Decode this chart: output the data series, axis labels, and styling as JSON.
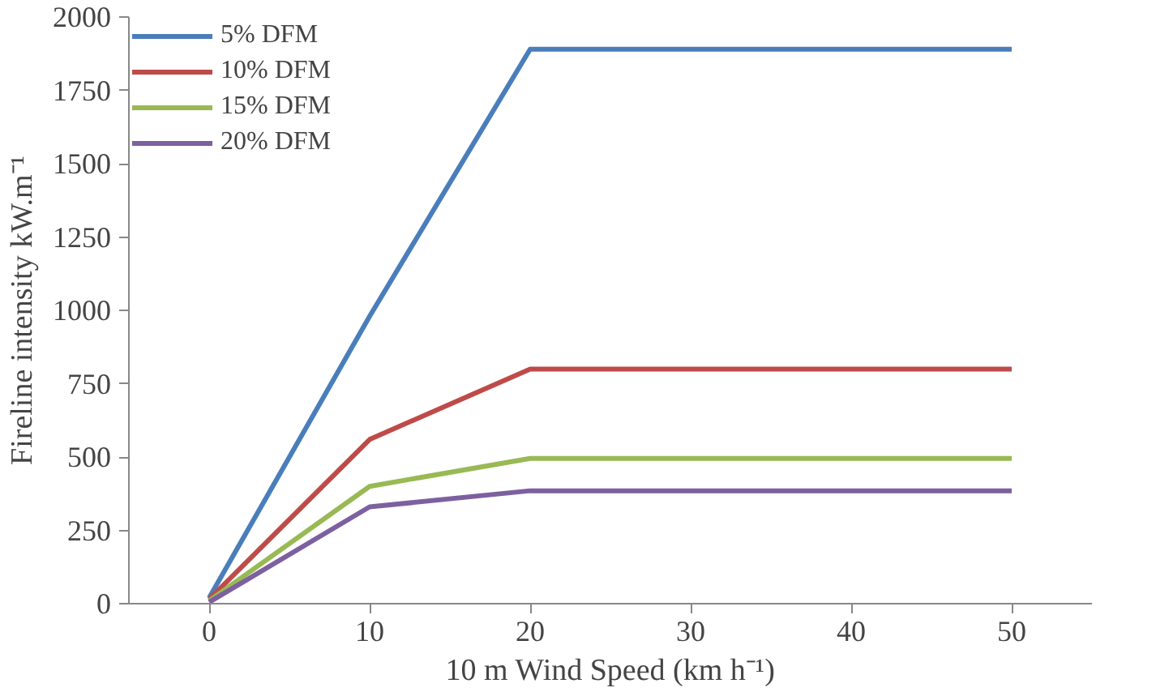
{
  "chart_data": {
    "type": "line",
    "xlabel": "10 m Wind Speed (km h⁻¹)",
    "ylabel": "Fireline intensity kW.m⁻¹",
    "x": [
      0,
      10,
      20,
      30,
      40,
      50
    ],
    "series": [
      {
        "name": "5% DFM",
        "color": "#4a7ebb",
        "values": [
          20,
          980,
          1890,
          1890,
          1890,
          1890
        ]
      },
      {
        "name": "10% DFM",
        "color": "#be4b48",
        "values": [
          15,
          560,
          800,
          800,
          800,
          800
        ]
      },
      {
        "name": "15% DFM",
        "color": "#98b954",
        "values": [
          10,
          400,
          495,
          495,
          495,
          495
        ]
      },
      {
        "name": "20% DFM",
        "color": "#7d60a0",
        "values": [
          5,
          330,
          385,
          385,
          385,
          385
        ]
      }
    ],
    "xlim": [
      -5,
      55
    ],
    "xticks": [
      0,
      10,
      20,
      30,
      40,
      50
    ],
    "ylim": [
      0,
      2000
    ],
    "yticks": [
      0,
      250,
      500,
      750,
      1000,
      1250,
      1500,
      1750,
      2000
    ],
    "grid": false,
    "legend": "top left",
    "marker": "none",
    "line_style": "solid"
  }
}
